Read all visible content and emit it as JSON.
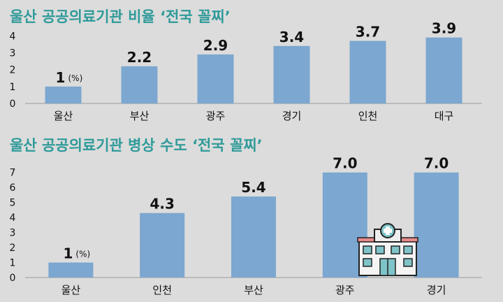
{
  "chart_data": [
    {
      "type": "bar",
      "title": "울산 공공의료기관 비율 ‘전국 꼴찌’",
      "categories": [
        "울산",
        "부산",
        "광주",
        "경기",
        "인천",
        "대구"
      ],
      "values": [
        1,
        2.2,
        2.9,
        3.4,
        3.7,
        3.9
      ],
      "value_labels": [
        "1",
        "2.2",
        "2.9",
        "3.4",
        "3.7",
        "3.9"
      ],
      "first_unit": "(%)",
      "yticks": [
        0,
        1,
        2,
        3,
        4
      ],
      "ylim": [
        0,
        4.3
      ],
      "bar_color": "#7ba7d0",
      "grid": false
    },
    {
      "type": "bar",
      "title": "울산 공공의료기관 병상 수도 ‘전국 꼴찌’",
      "categories": [
        "울산",
        "인천",
        "부산",
        "광주",
        "경기"
      ],
      "values": [
        1,
        4.3,
        5.4,
        7.0,
        7.0
      ],
      "value_labels": [
        "1",
        "4.3",
        "5.4",
        "7.0",
        "7.0"
      ],
      "first_unit": "(%)",
      "yticks": [
        0,
        1,
        2,
        3,
        4,
        5,
        6,
        7
      ],
      "ylim": [
        0,
        7.5
      ],
      "bar_color": "#7ba7d0",
      "grid": false
    }
  ],
  "icons": {
    "hospital": "hospital-icon"
  },
  "colors": {
    "title": "#2f9a9a",
    "background": "#dcdcdc"
  }
}
